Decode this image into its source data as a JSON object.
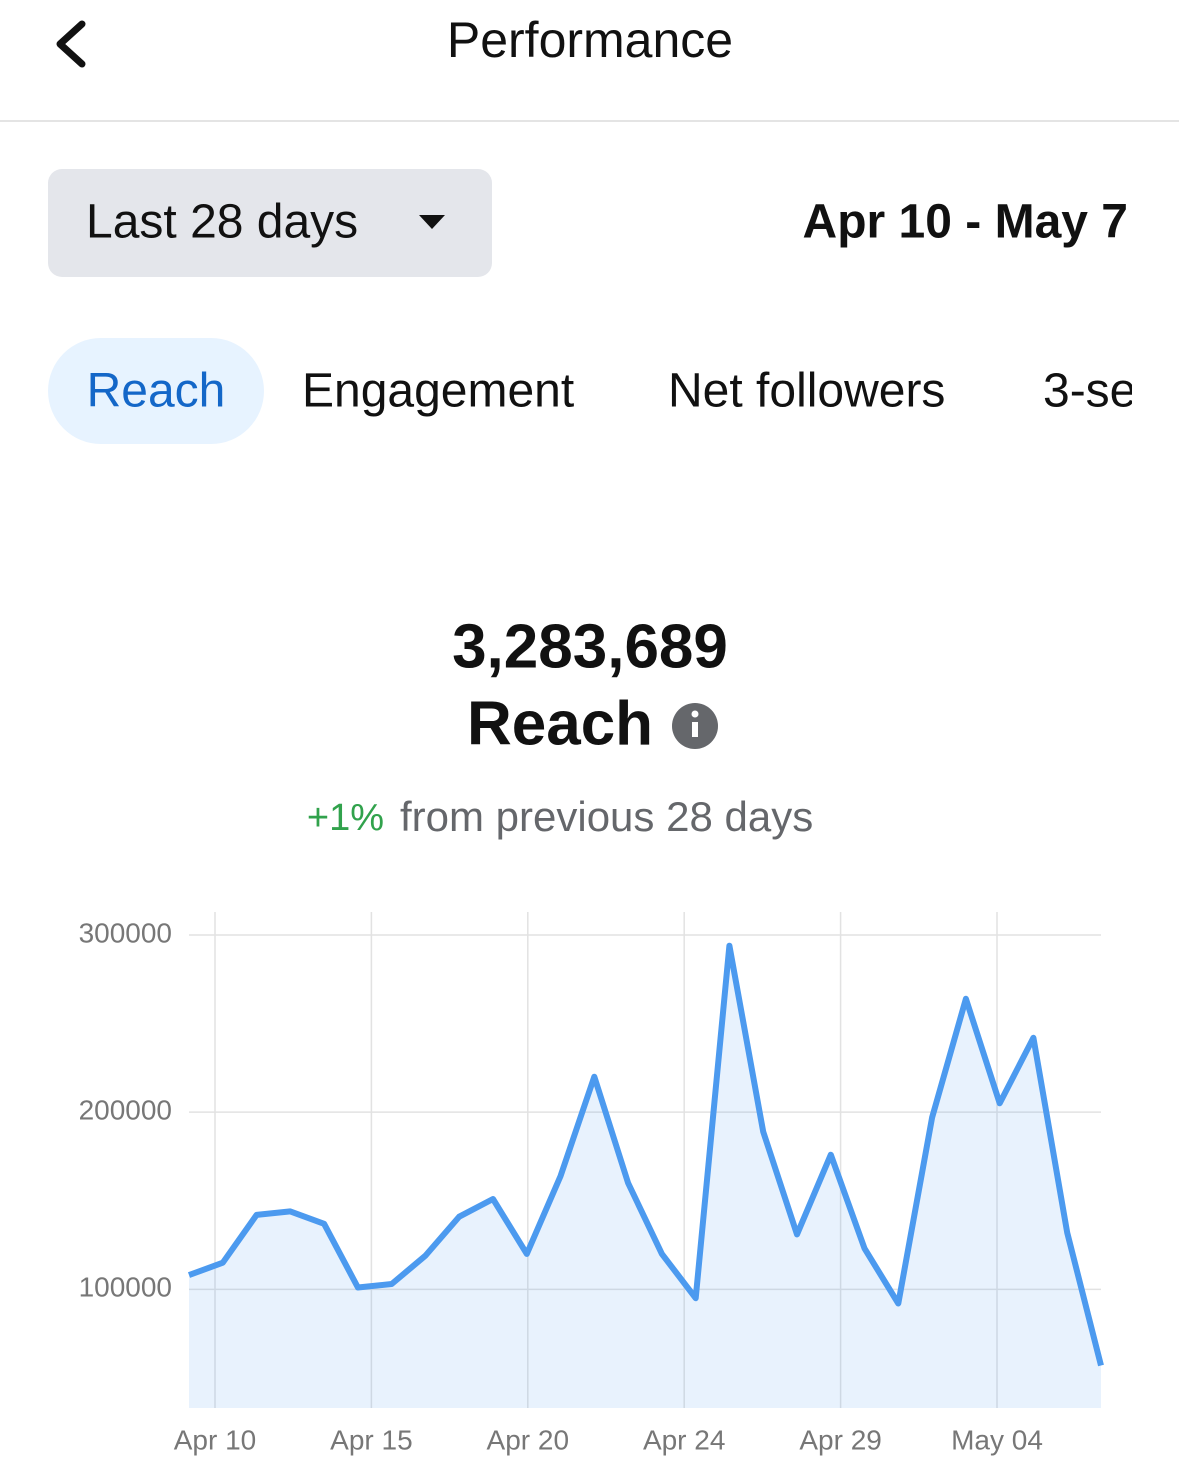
{
  "header": {
    "title": "Performance"
  },
  "filter": {
    "period": "Last 28 days",
    "range": "Apr 10 - May 7"
  },
  "tabs": [
    "Reach",
    "Engagement",
    "Net followers",
    "3-se"
  ],
  "summary": {
    "total": "3,283,689",
    "metric": "Reach",
    "change": "+1%",
    "comparison": "from previous 28 days"
  },
  "chart_data": {
    "type": "line",
    "categories": [
      null,
      null,
      null,
      null,
      null,
      null,
      null,
      null,
      null,
      null,
      null,
      null,
      null,
      null,
      null,
      null,
      null,
      null,
      null,
      null,
      null,
      null,
      null,
      null,
      null,
      null,
      null,
      null
    ],
    "xtick_labels": [
      "Apr 10",
      "Apr 15",
      "Apr 20",
      "Apr 24",
      "Apr 29",
      "May 04"
    ],
    "series": [
      {
        "name": "Reach",
        "color": "#4c9aef",
        "values": [
          108000,
          115000,
          142000,
          144000,
          137000,
          101000,
          103000,
          119000,
          141000,
          151000,
          120000,
          164000,
          220000,
          160000,
          120000,
          95000,
          294000,
          189000,
          131000,
          176000,
          123000,
          92000,
          197000,
          264000,
          205000,
          242000,
          132000,
          57000
        ]
      }
    ],
    "ylim": [
      33000,
      313000
    ],
    "yticks": [
      100000,
      200000,
      300000
    ],
    "grid": true,
    "area": true
  }
}
